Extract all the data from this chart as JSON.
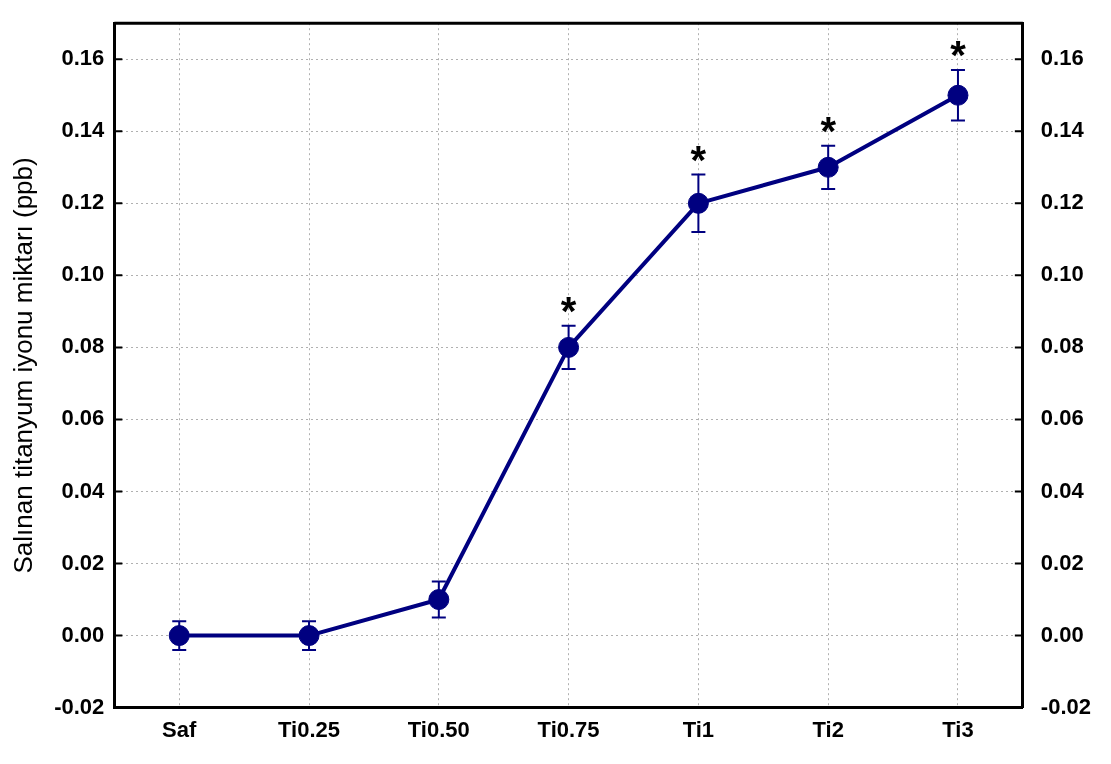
{
  "chart_data": {
    "type": "line",
    "ylabel": "Salınan titanyum iyonu miktarı (ppb)",
    "categories": [
      "Saf",
      "Ti0.25",
      "Ti0.50",
      "Ti0.75",
      "Ti1",
      "Ti2",
      "Ti3"
    ],
    "series": [
      {
        "color": "#000080",
        "values": [
          0,
          0,
          0.01,
          0.08,
          0.12,
          0.13,
          0.15
        ],
        "errors": [
          0.004,
          0.004,
          0.005,
          0.006,
          0.008,
          0.006,
          0.007
        ]
      }
    ],
    "ylim": [
      -0.02,
      0.17
    ],
    "yticks": [
      {
        "value": -0.02,
        "label": "-0.02"
      },
      {
        "value": 0,
        "label": "0.00"
      },
      {
        "value": 0.02,
        "label": "0.02"
      },
      {
        "value": 0.04,
        "label": "0.04"
      },
      {
        "value": 0.06,
        "label": "0.06"
      },
      {
        "value": 0.08,
        "label": "0.08"
      },
      {
        "value": 0.1,
        "label": "0.10"
      },
      {
        "value": 0.12,
        "label": "0.12"
      },
      {
        "value": 0.14,
        "label": "0.14"
      },
      {
        "value": 0.16,
        "label": "0.16"
      }
    ],
    "y2lim": [
      -0.02,
      0.17
    ],
    "y2ticks": [
      {
        "value": -0.02,
        "label": "-0.02"
      },
      {
        "value": 0,
        "label": "0.00"
      },
      {
        "value": 0.02,
        "label": "0.02"
      },
      {
        "value": 0.04,
        "label": "0.04"
      },
      {
        "value": 0.06,
        "label": "0.06"
      },
      {
        "value": 0.08,
        "label": "0.08"
      },
      {
        "value": 0.1,
        "label": "0.10"
      },
      {
        "value": 0.12,
        "label": "0.12"
      },
      {
        "value": 0.14,
        "label": "0.14"
      },
      {
        "value": 0.16,
        "label": "0.16"
      }
    ],
    "annotations": [
      {
        "text": "*",
        "x": "Ti0.75",
        "y": 0.08
      },
      {
        "text": "*",
        "x": "Ti1",
        "y": 0.12
      },
      {
        "text": "*",
        "x": "Ti2",
        "y": 0.13
      },
      {
        "text": "*",
        "x": "Ti3",
        "y": 0.15
      }
    ],
    "grid": true,
    "legend": false,
    "marker": "circle",
    "line_style": "solid"
  }
}
